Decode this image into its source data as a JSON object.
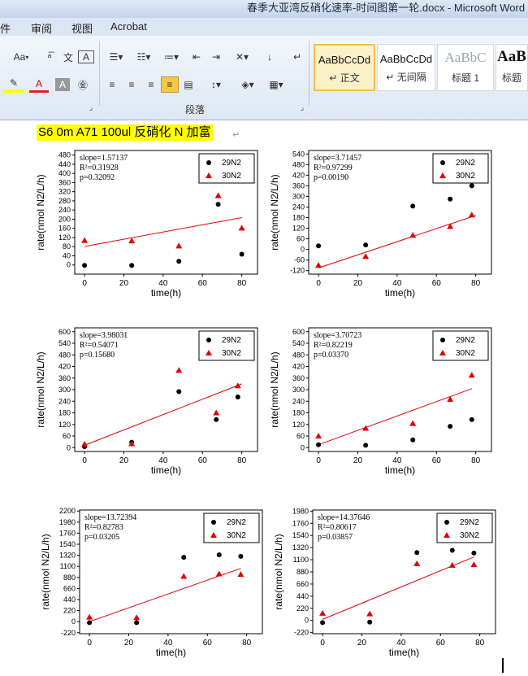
{
  "window": {
    "title": "春季大亚湾反硝化速率-时间图第一轮.docx - Microsoft Word"
  },
  "tabs": [
    "件",
    "审阅",
    "视图",
    "Acrobat"
  ],
  "ribbon": {
    "paragraph_group": "段落",
    "font_button": "Aa",
    "styles": [
      {
        "sample": "AaBbCcDd",
        "name": "正文",
        "selected": true
      },
      {
        "sample": "AaBbCcDd",
        "name": "无间隔",
        "selected": false
      },
      {
        "sample": "AaBbC",
        "name": "标题 1",
        "selected": false
      },
      {
        "sample": "AaB",
        "name": "标题",
        "selected": false
      }
    ]
  },
  "document": {
    "heading": "S6 0m A71 100ul  反硝化 N 加富"
  },
  "chart_data": [
    {
      "type": "scatter",
      "xlabel": "time(h)",
      "ylabel": "rate(nmol N2/L/h)",
      "xlim": [
        -5,
        88
      ],
      "ylim": [
        -40,
        500
      ],
      "yticks": [
        0,
        40,
        80,
        120,
        160,
        200,
        240,
        280,
        320,
        360,
        400,
        440,
        480
      ],
      "xticks": [
        0,
        20,
        40,
        60,
        80
      ],
      "stats": [
        "slope=1.57137",
        "R²=0.31928",
        "p=0.32092"
      ],
      "series": [
        {
          "name": "29N2",
          "x": [
            0,
            24,
            48,
            68,
            80
          ],
          "y": [
            -2,
            -2,
            16,
            265,
            47
          ]
        },
        {
          "name": "30N2",
          "x": [
            0,
            24,
            48,
            68,
            80
          ],
          "y": [
            107,
            105,
            83,
            303,
            161
          ]
        }
      ],
      "fit": {
        "x": [
          0,
          80
        ],
        "y": [
          81,
          207
        ]
      }
    },
    {
      "type": "scatter",
      "xlabel": "time(h)",
      "ylabel": "rate(nmol N2/L/h)",
      "xlim": [
        -5,
        88
      ],
      "ylim": [
        -140,
        560
      ],
      "yticks": [
        -120,
        -60,
        0,
        60,
        120,
        180,
        240,
        300,
        360,
        420,
        480,
        540
      ],
      "xticks": [
        0,
        20,
        40,
        60,
        80
      ],
      "stats": [
        "slope=3.71457",
        "R²=0.97299",
        "p=0.00190"
      ],
      "series": [
        {
          "name": "29N2",
          "x": [
            0,
            24,
            48,
            67,
            78
          ],
          "y": [
            20,
            25,
            245,
            285,
            360
          ]
        },
        {
          "name": "30N2",
          "x": [
            0,
            24,
            48,
            67,
            78
          ],
          "y": [
            -90,
            -40,
            80,
            130,
            195
          ]
        }
      ],
      "fit": {
        "x": [
          0,
          80
        ],
        "y": [
          -105,
          192
        ]
      }
    },
    {
      "type": "scatter",
      "xlabel": "time(h)",
      "ylabel": "rate(nmol N2/L/h)",
      "xlim": [
        -5,
        88
      ],
      "ylim": [
        -20,
        620
      ],
      "yticks": [
        0,
        60,
        120,
        180,
        240,
        300,
        360,
        420,
        480,
        540,
        600
      ],
      "xticks": [
        0,
        20,
        40,
        60,
        80
      ],
      "stats": [
        "slope=3.98031",
        "R²=0.54071",
        "p=0.15680"
      ],
      "series": [
        {
          "name": "29N2",
          "x": [
            0,
            24,
            48,
            67,
            78
          ],
          "y": [
            5,
            28,
            290,
            145,
            262
          ]
        },
        {
          "name": "30N2",
          "x": [
            0,
            24,
            48,
            67,
            78
          ],
          "y": [
            18,
            20,
            400,
            180,
            320
          ]
        }
      ],
      "fit": {
        "x": [
          0,
          80
        ],
        "y": [
          12,
          330
        ]
      }
    },
    {
      "type": "scatter",
      "xlabel": "time(h)",
      "ylabel": "rate(nmol N2/L/h)",
      "xlim": [
        -5,
        88
      ],
      "ylim": [
        -20,
        620
      ],
      "yticks": [
        0,
        60,
        120,
        180,
        240,
        300,
        360,
        420,
        480,
        540,
        600
      ],
      "xticks": [
        0,
        20,
        40,
        60,
        80
      ],
      "stats": [
        "slope=3.70723",
        "R²=0.82219",
        "p=0.03370"
      ],
      "series": [
        {
          "name": "29N2",
          "x": [
            0,
            24,
            48,
            67,
            78
          ],
          "y": [
            15,
            12,
            40,
            110,
            145
          ]
        },
        {
          "name": "30N2",
          "x": [
            0,
            24,
            48,
            67,
            78
          ],
          "y": [
            60,
            100,
            125,
            250,
            375
          ]
        }
      ],
      "fit": {
        "x": [
          0,
          78
        ],
        "y": [
          15,
          305
        ]
      }
    },
    {
      "type": "scatter",
      "xlabel": "time(h)",
      "ylabel": "rate(nmol N2/L/h)",
      "xlim": [
        -5,
        88
      ],
      "ylim": [
        -240,
        2220
      ],
      "yticks": [
        -220,
        0,
        220,
        440,
        660,
        880,
        1100,
        1320,
        1540,
        1760,
        1980,
        2200
      ],
      "xticks": [
        0,
        20,
        40,
        60,
        80
      ],
      "stats": [
        "slope=13.72394",
        "R²=0.82783",
        "p=0.03205"
      ],
      "series": [
        {
          "name": "29N2",
          "x": [
            0,
            24,
            48,
            66,
            77
          ],
          "y": [
            -20,
            -20,
            1280,
            1330,
            1300
          ]
        },
        {
          "name": "30N2",
          "x": [
            0,
            24,
            48,
            66,
            77
          ],
          "y": [
            90,
            80,
            900,
            950,
            940
          ]
        }
      ],
      "fit": {
        "x": [
          0,
          77
        ],
        "y": [
          0,
          1060
        ]
      }
    },
    {
      "type": "scatter",
      "xlabel": "time(h)",
      "ylabel": "rate(nmol N2/L/h)",
      "xlim": [
        -5,
        88
      ],
      "ylim": [
        -240,
        2000
      ],
      "yticks": [
        -220,
        0,
        220,
        440,
        660,
        880,
        1100,
        1320,
        1540,
        1760,
        1980
      ],
      "xticks": [
        0,
        20,
        40,
        60,
        80
      ],
      "stats": [
        "slope=14.37646",
        "R²=0.80617",
        "p=0.03857"
      ],
      "series": [
        {
          "name": "29N2",
          "x": [
            0,
            24,
            48,
            66,
            77
          ],
          "y": [
            -40,
            -30,
            1230,
            1270,
            1220
          ]
        },
        {
          "name": "30N2",
          "x": [
            0,
            24,
            48,
            66,
            77
          ],
          "y": [
            130,
            120,
            1030,
            1000,
            1010
          ]
        }
      ],
      "fit": {
        "x": [
          0,
          77
        ],
        "y": [
          20,
          1150
        ]
      }
    }
  ]
}
